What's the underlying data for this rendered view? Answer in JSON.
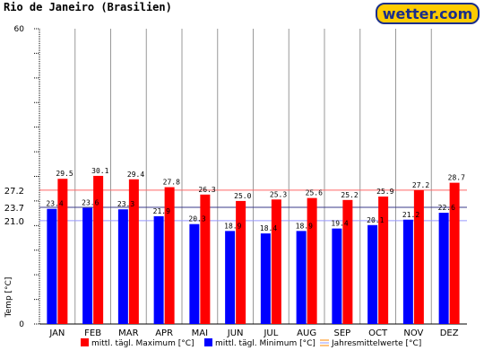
{
  "page": {
    "title": "Rio de Janeiro (Brasilien)",
    "logo": "wetter.com"
  },
  "colors": {
    "max": "#ff0000",
    "min": "#0000ff",
    "mean_line": "#ff8800"
  },
  "chart_data": {
    "type": "bar",
    "title": "Rio de Janeiro (Brasilien)",
    "xlabel": "",
    "ylabel": "Temp [°C]",
    "ylim": [
      0,
      60
    ],
    "y_ticks_labeled": [
      0,
      60
    ],
    "grid": "vertical",
    "legend_position": "bottom",
    "categories": [
      "JAN",
      "FEB",
      "MAR",
      "APR",
      "MAI",
      "JUN",
      "JUL",
      "AUG",
      "SEP",
      "OCT",
      "NOV",
      "DEZ"
    ],
    "series": [
      {
        "name": "mittl. tägl. Maximum [°C]",
        "values": [
          29.5,
          30.1,
          29.4,
          27.8,
          26.3,
          25.0,
          25.3,
          25.6,
          25.2,
          25.9,
          27.2,
          28.7
        ]
      },
      {
        "name": "mittl. tägl. Minimum [°C]",
        "values": [
          23.4,
          23.6,
          23.3,
          21.9,
          20.3,
          18.9,
          18.4,
          18.9,
          19.4,
          20.1,
          21.2,
          22.6
        ]
      }
    ],
    "value_labels": {
      "max": [
        "29.5",
        "30.1",
        "29.4",
        "27.8",
        "26.3",
        "25.0",
        "25.3",
        "25.6",
        "25.2",
        "25.9",
        "27.2",
        "28.7"
      ],
      "min": [
        "23.4",
        "23.6",
        "23.3",
        "21.9",
        "20.3",
        "18.9",
        "18.4",
        "18.9",
        "19.4",
        "20.1",
        "21.2",
        "22.6"
      ]
    },
    "annual_means": {
      "name": "Jahresmittelwerte [°C]",
      "lines": [
        {
          "key": "max",
          "value": 27.2,
          "label": "27.2"
        },
        {
          "key": "avg",
          "value": 23.7,
          "label": "23.7"
        },
        {
          "key": "min",
          "value": 21.0,
          "label": "21.0"
        }
      ]
    }
  }
}
